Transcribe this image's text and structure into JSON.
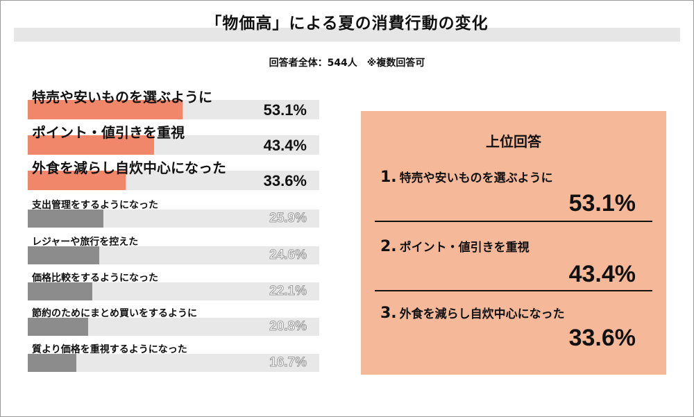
{
  "title": "「物価高」による夏の消費行動の変化",
  "subtitle": "回答者全体：544人　※複数回答可",
  "colors": {
    "highlight": "#f0876a",
    "normal": "#8c8c8c",
    "track": "#e8e8e8",
    "panel": "#f5b99a"
  },
  "chart_data": {
    "type": "bar",
    "orientation": "horizontal",
    "categories": [
      "特売や安いものを選ぶように",
      "ポイント・値引きを重視",
      "外食を減らし自炊中心になった",
      "支出管理をするようになった",
      "レジャーや旅行を控えた",
      "価格比較をするようになった",
      "節約のためにまとめ買いをするように",
      "質より価格を重視するようになった"
    ],
    "values": [
      53.1,
      43.4,
      33.6,
      25.9,
      24.6,
      22.1,
      20.8,
      16.7
    ],
    "value_labels": [
      "53.1%",
      "43.4%",
      "33.6%",
      "25.9%",
      "24.6%",
      "22.1%",
      "20.8%",
      "16.7%"
    ],
    "xlim": [
      0,
      100
    ],
    "highlighted_count": 3
  },
  "panel": {
    "title": "上位回答",
    "ranks": [
      {
        "num": "1.",
        "label": "特売や安いものを選ぶように",
        "pct": "53.1%"
      },
      {
        "num": "2.",
        "label": "ポイント・値引きを重視",
        "pct": "43.4%"
      },
      {
        "num": "3.",
        "label": "外食を減らし自炊中心になった",
        "pct": "33.6%"
      }
    ]
  }
}
